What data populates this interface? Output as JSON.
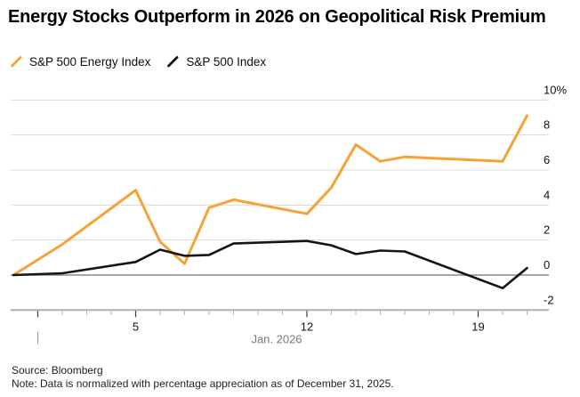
{
  "header": {
    "title": "Energy Stocks Outperform in 2026 on Geopolitical Risk Premium"
  },
  "legend": [
    {
      "label": "S&P 500 Energy Index",
      "color": "#F6A237"
    },
    {
      "label": "S&P 500 Index",
      "color": "#151515"
    }
  ],
  "footer": {
    "source": "Source: Bloomberg",
    "note": "Note: Data is normalized with percentage appreciation as of December 31, 2025."
  },
  "chart_data": {
    "type": "line",
    "title": "Energy Stocks Outperform in 2026 on Geopolitical Risk Premium",
    "x_dates": [
      "Dec 31, 2025",
      "Jan 2",
      "Jan 5",
      "Jan 6",
      "Jan 7",
      "Jan 8",
      "Jan 9",
      "Jan 12",
      "Jan 13",
      "Jan 14",
      "Jan 15",
      "Jan 16",
      "Jan 20",
      "Jan 21"
    ],
    "x_day_offsets": [
      0,
      2,
      5,
      6,
      7,
      8,
      9,
      12,
      13,
      14,
      15,
      16,
      20,
      21
    ],
    "series": [
      {
        "name": "S&P 500 Energy Index",
        "color": "#F6A237",
        "values": [
          0,
          1.75,
          4.85,
          1.9,
          0.65,
          3.85,
          4.3,
          3.5,
          5.0,
          7.45,
          6.5,
          6.75,
          6.5,
          9.1
        ]
      },
      {
        "name": "S&P 500 Index",
        "color": "#151515",
        "values": [
          0,
          0.1,
          0.75,
          1.45,
          1.1,
          1.15,
          1.8,
          1.95,
          1.7,
          1.2,
          1.4,
          1.35,
          -0.75,
          0.4
        ]
      }
    ],
    "ylim": [
      -2,
      10
    ],
    "y_ticks": [
      {
        "value": 10,
        "label": "10%"
      },
      {
        "value": 8,
        "label": "8"
      },
      {
        "value": 6,
        "label": "6"
      },
      {
        "value": 4,
        "label": "4"
      },
      {
        "value": 2,
        "label": "2"
      },
      {
        "value": 0,
        "label": "0"
      },
      {
        "value": -2,
        "label": "-2"
      }
    ],
    "x_major_ticks": [
      {
        "day": 1,
        "label": ""
      },
      {
        "day": 5,
        "label": "5"
      },
      {
        "day": 12,
        "label": "12"
      },
      {
        "day": 19,
        "label": "19"
      }
    ],
    "x_minor_tick_range": [
      1,
      21
    ],
    "x_axis_label": "Jan. 2026",
    "grid": "horizontal",
    "legend_position": "top-left",
    "baseline_value": 0
  }
}
